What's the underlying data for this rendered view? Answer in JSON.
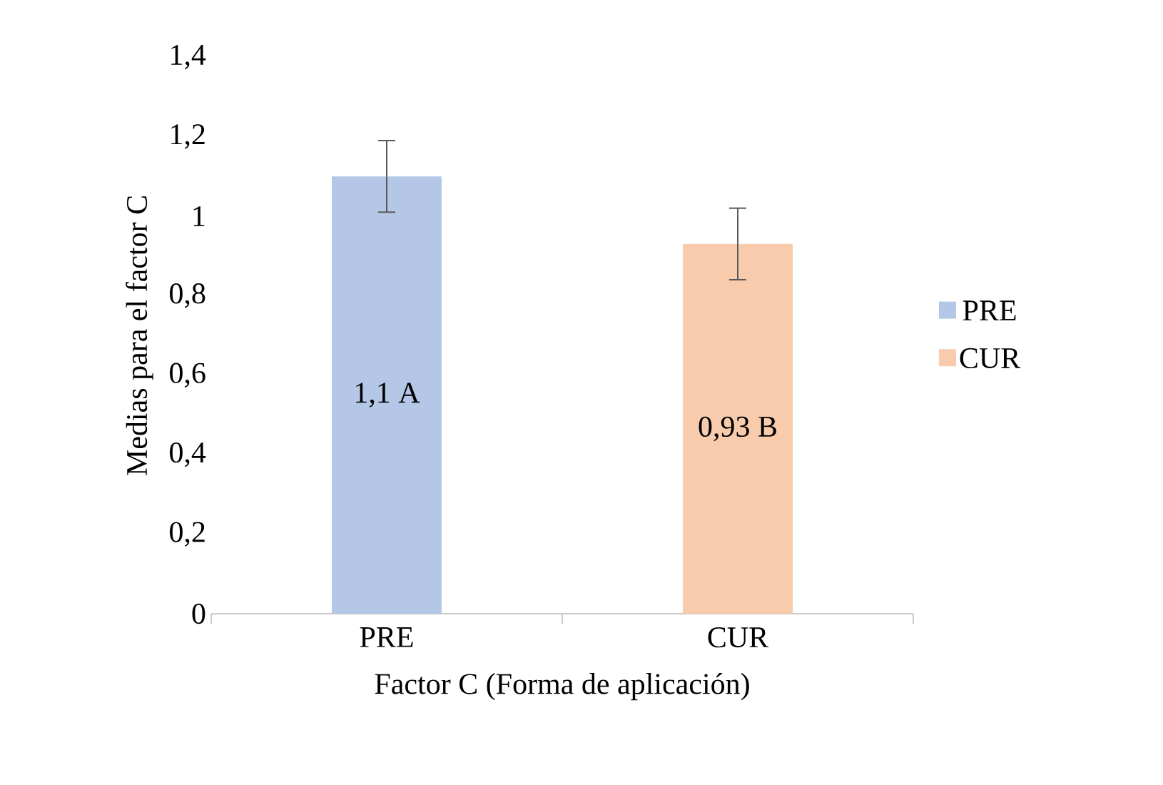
{
  "chart_data": {
    "type": "bar",
    "xlabel": "Factor C (Forma de aplicación)",
    "ylabel": "Medias para el factor C",
    "categories": [
      "PRE",
      "CUR"
    ],
    "series": [
      {
        "name": "PRE",
        "color": "#b4c7e7",
        "values": [
          1.1,
          null
        ],
        "errors": [
          0.09,
          null
        ],
        "value_labels": [
          "1,1 A",
          null
        ]
      },
      {
        "name": "CUR",
        "color": "#f8cbad",
        "values": [
          null,
          0.93
        ],
        "errors": [
          null,
          0.09
        ],
        "value_labels": [
          null,
          "0,93 B"
        ]
      }
    ],
    "ylim": [
      0,
      1.4
    ],
    "yticks": [
      0,
      {
        "value": 0.2,
        "label": "0,2"
      },
      {
        "value": 0.4,
        "label": "0,4"
      },
      {
        "value": 0.6,
        "label": "0,6"
      },
      {
        "value": 0.8,
        "label": "0,8"
      },
      1,
      {
        "value": 1.2,
        "label": "1,2"
      },
      {
        "value": 1.4,
        "label": "1,4"
      }
    ],
    "legend": "right"
  }
}
